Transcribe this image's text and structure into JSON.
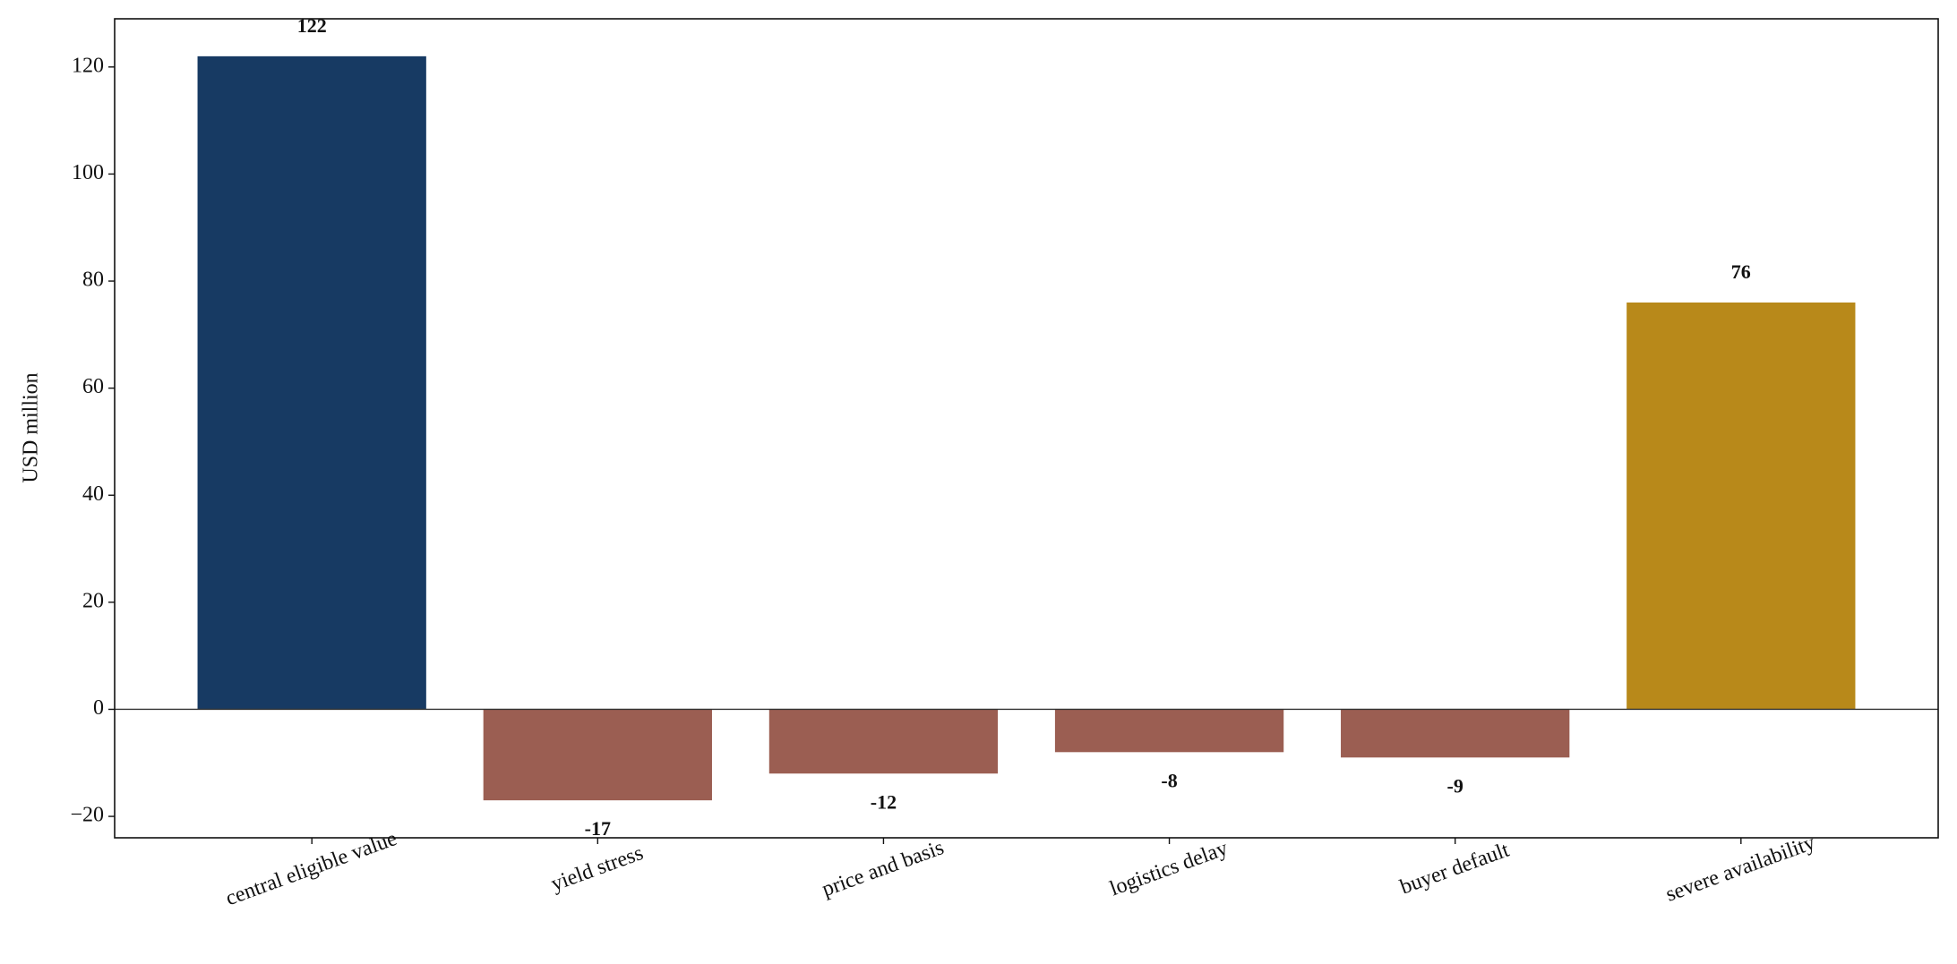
{
  "chart_data": {
    "type": "bar",
    "y_label": "USD million",
    "categories": [
      "central eligible value",
      "yield stress",
      "price and basis",
      "logistics delay",
      "buyer default",
      "severe availability"
    ],
    "values": [
      122,
      -17,
      -12,
      -8,
      -9,
      76
    ],
    "colors": [
      "#173a63",
      "#9b5e52",
      "#9b5e52",
      "#9b5e52",
      "#9b5e52",
      "#b8891a"
    ],
    "ylim": [
      -24,
      129
    ],
    "yticks": [
      {
        "value": -20,
        "label": "−20"
      },
      0,
      20,
      40,
      60,
      80,
      100,
      120
    ],
    "zero_line": true,
    "grid": false
  }
}
